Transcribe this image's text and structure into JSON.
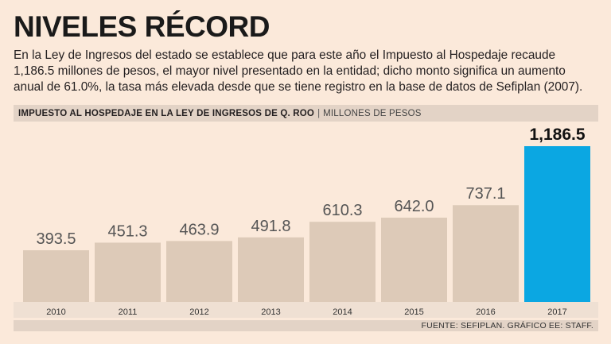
{
  "header": {
    "title": "NIVELES RÉCORD",
    "description": "En la Ley de Ingresos del estado se establece que para este año el Impuesto al Hospedaje recaude 1,186.5 millones de pesos, el mayor nivel presentado en la entidad; dicho monto significa un aumento anual de 61.0%, la tasa más elevada desde que se tiene registro en la base de datos de Sefiplan (2007)."
  },
  "chart_data": {
    "type": "bar",
    "title": "IMPUESTO AL HOSPEDAJE EN  LA LEY DE INGRESOS DE Q. ROO",
    "separator": "|",
    "unit": "MILLONES DE PESOS",
    "categories": [
      "2010",
      "2011",
      "2012",
      "2013",
      "2014",
      "2015",
      "2016",
      "2017"
    ],
    "values": [
      393.5,
      451.3,
      463.9,
      491.8,
      610.3,
      642.0,
      737.1,
      1186.5
    ],
    "labels": [
      "393.5",
      "451.3",
      "463.9",
      "491.8",
      "610.3",
      "642.0",
      "737.1",
      "1,186.5"
    ],
    "highlight_index": 7,
    "colors": {
      "bar": "#ddcab8",
      "highlight": "#0ba7e2",
      "label": "#555555",
      "highlight_label": "#111111"
    },
    "ylim": [
      0,
      1186.5
    ],
    "xlabel": "",
    "ylabel": ""
  },
  "footer": {
    "source": "FUENTE: SEFIPLAN. GRÁFICO EE: STAFF."
  }
}
